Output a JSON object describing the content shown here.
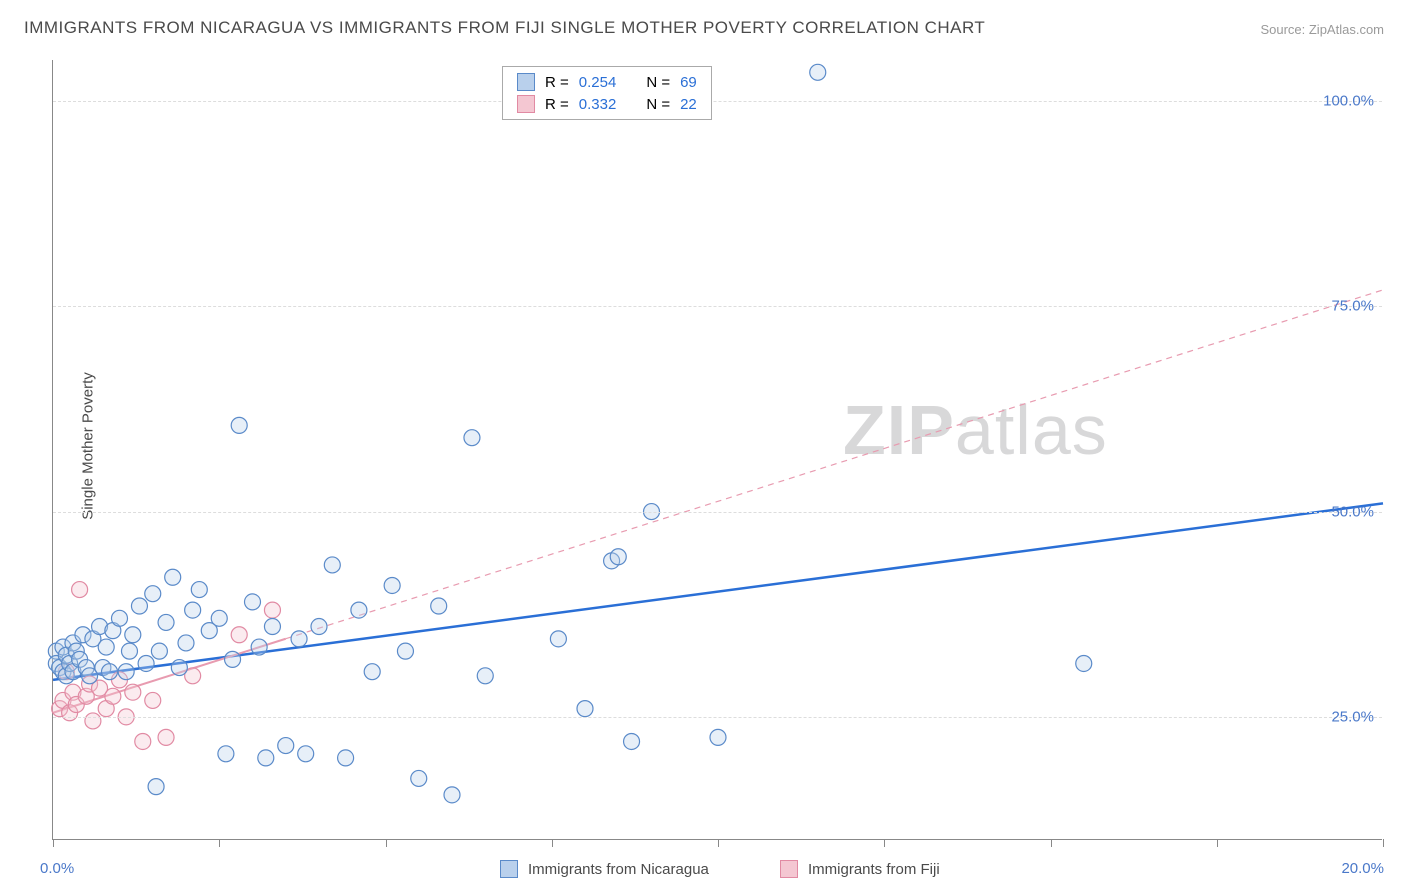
{
  "title": "IMMIGRANTS FROM NICARAGUA VS IMMIGRANTS FROM FIJI SINGLE MOTHER POVERTY CORRELATION CHART",
  "source": "Source: ZipAtlas.com",
  "ylabel": "Single Mother Poverty",
  "watermark_bold": "ZIP",
  "watermark_light": "atlas",
  "chart": {
    "type": "scatter",
    "xlim": [
      0,
      20
    ],
    "ylim": [
      10,
      105
    ],
    "xtick_positions": [
      0,
      2.5,
      5,
      7.5,
      10,
      12.5,
      15,
      17.5,
      20
    ],
    "xtick_labels": {
      "0": "0.0%",
      "20": "20.0%"
    },
    "ytick_positions": [
      25,
      50,
      75,
      100
    ],
    "ytick_labels": [
      "25.0%",
      "50.0%",
      "75.0%",
      "100.0%"
    ],
    "grid_positions": [
      25,
      50,
      75,
      100
    ],
    "grid_color": "#dddddd",
    "background_color": "#ffffff",
    "marker_radius": 8,
    "marker_stroke_width": 1.2,
    "marker_fill_opacity": 0.35,
    "series": [
      {
        "name": "Immigrants from Nicaragua",
        "color_fill": "#b9d0ec",
        "color_stroke": "#5a8ac9",
        "R": "0.254",
        "N": "69",
        "trend": {
          "x1": 0,
          "y1": 29.5,
          "x2": 20,
          "y2": 51,
          "color": "#2a6fd6",
          "width": 2.5,
          "dash": "none"
        },
        "points": [
          [
            0.05,
            33
          ],
          [
            0.05,
            31.5
          ],
          [
            0.1,
            31
          ],
          [
            0.15,
            33.5
          ],
          [
            0.15,
            30.5
          ],
          [
            0.2,
            32.5
          ],
          [
            0.2,
            30
          ],
          [
            0.25,
            31.5
          ],
          [
            0.3,
            34
          ],
          [
            0.3,
            30.5
          ],
          [
            0.35,
            33
          ],
          [
            0.4,
            32
          ],
          [
            0.45,
            35
          ],
          [
            0.5,
            31
          ],
          [
            0.55,
            30
          ],
          [
            0.6,
            34.5
          ],
          [
            0.7,
            36
          ],
          [
            0.75,
            31
          ],
          [
            0.8,
            33.5
          ],
          [
            0.85,
            30.5
          ],
          [
            0.9,
            35.5
          ],
          [
            1.0,
            37
          ],
          [
            1.1,
            30.5
          ],
          [
            1.15,
            33
          ],
          [
            1.2,
            35
          ],
          [
            1.3,
            38.5
          ],
          [
            1.4,
            31.5
          ],
          [
            1.5,
            40
          ],
          [
            1.55,
            16.5
          ],
          [
            1.6,
            33
          ],
          [
            1.7,
            36.5
          ],
          [
            1.8,
            42
          ],
          [
            1.9,
            31
          ],
          [
            2.0,
            34
          ],
          [
            2.1,
            38
          ],
          [
            2.2,
            40.5
          ],
          [
            2.35,
            35.5
          ],
          [
            2.5,
            37
          ],
          [
            2.6,
            20.5
          ],
          [
            2.7,
            32
          ],
          [
            2.8,
            60.5
          ],
          [
            3.0,
            39
          ],
          [
            3.1,
            33.5
          ],
          [
            3.2,
            20
          ],
          [
            3.3,
            36
          ],
          [
            3.5,
            21.5
          ],
          [
            3.7,
            34.5
          ],
          [
            3.8,
            20.5
          ],
          [
            4.0,
            36
          ],
          [
            4.2,
            43.5
          ],
          [
            4.4,
            20
          ],
          [
            4.6,
            38
          ],
          [
            4.8,
            30.5
          ],
          [
            5.1,
            41
          ],
          [
            5.3,
            33
          ],
          [
            5.5,
            17.5
          ],
          [
            5.8,
            38.5
          ],
          [
            6.0,
            15.5
          ],
          [
            6.3,
            59
          ],
          [
            6.5,
            30
          ],
          [
            7.6,
            34.5
          ],
          [
            8.0,
            26
          ],
          [
            8.4,
            44
          ],
          [
            8.5,
            44.5
          ],
          [
            8.7,
            22
          ],
          [
            9.0,
            50
          ],
          [
            10.0,
            22.5
          ],
          [
            11.5,
            103.5
          ],
          [
            15.5,
            31.5
          ]
        ]
      },
      {
        "name": "Immigrants from Fiji",
        "color_fill": "#f4c7d2",
        "color_stroke": "#e18aa3",
        "R": "0.332",
        "N": "22",
        "trend": {
          "x1": 0,
          "y1": 25.5,
          "x2": 20,
          "y2": 77,
          "color": "#e89bb0",
          "width": 1.2,
          "dash": "6,5"
        },
        "trend_solid_until_x": 3.5,
        "points": [
          [
            0.1,
            26
          ],
          [
            0.15,
            27
          ],
          [
            0.2,
            30.5
          ],
          [
            0.25,
            25.5
          ],
          [
            0.3,
            28
          ],
          [
            0.35,
            26.5
          ],
          [
            0.4,
            40.5
          ],
          [
            0.5,
            27.5
          ],
          [
            0.55,
            29
          ],
          [
            0.6,
            24.5
          ],
          [
            0.7,
            28.5
          ],
          [
            0.8,
            26
          ],
          [
            0.9,
            27.5
          ],
          [
            1.0,
            29.5
          ],
          [
            1.1,
            25
          ],
          [
            1.2,
            28
          ],
          [
            1.35,
            22
          ],
          [
            1.5,
            27
          ],
          [
            1.7,
            22.5
          ],
          [
            2.1,
            30
          ],
          [
            2.8,
            35
          ],
          [
            3.3,
            38
          ]
        ]
      }
    ],
    "legend_top": {
      "R_label": "R =",
      "N_label": "N ="
    },
    "legend_bottom": [
      {
        "label": "Immigrants from Nicaragua",
        "fill": "#b9d0ec",
        "stroke": "#5a8ac9"
      },
      {
        "label": "Immigrants from Fiji",
        "fill": "#f4c7d2",
        "stroke": "#e18aa3"
      }
    ]
  }
}
